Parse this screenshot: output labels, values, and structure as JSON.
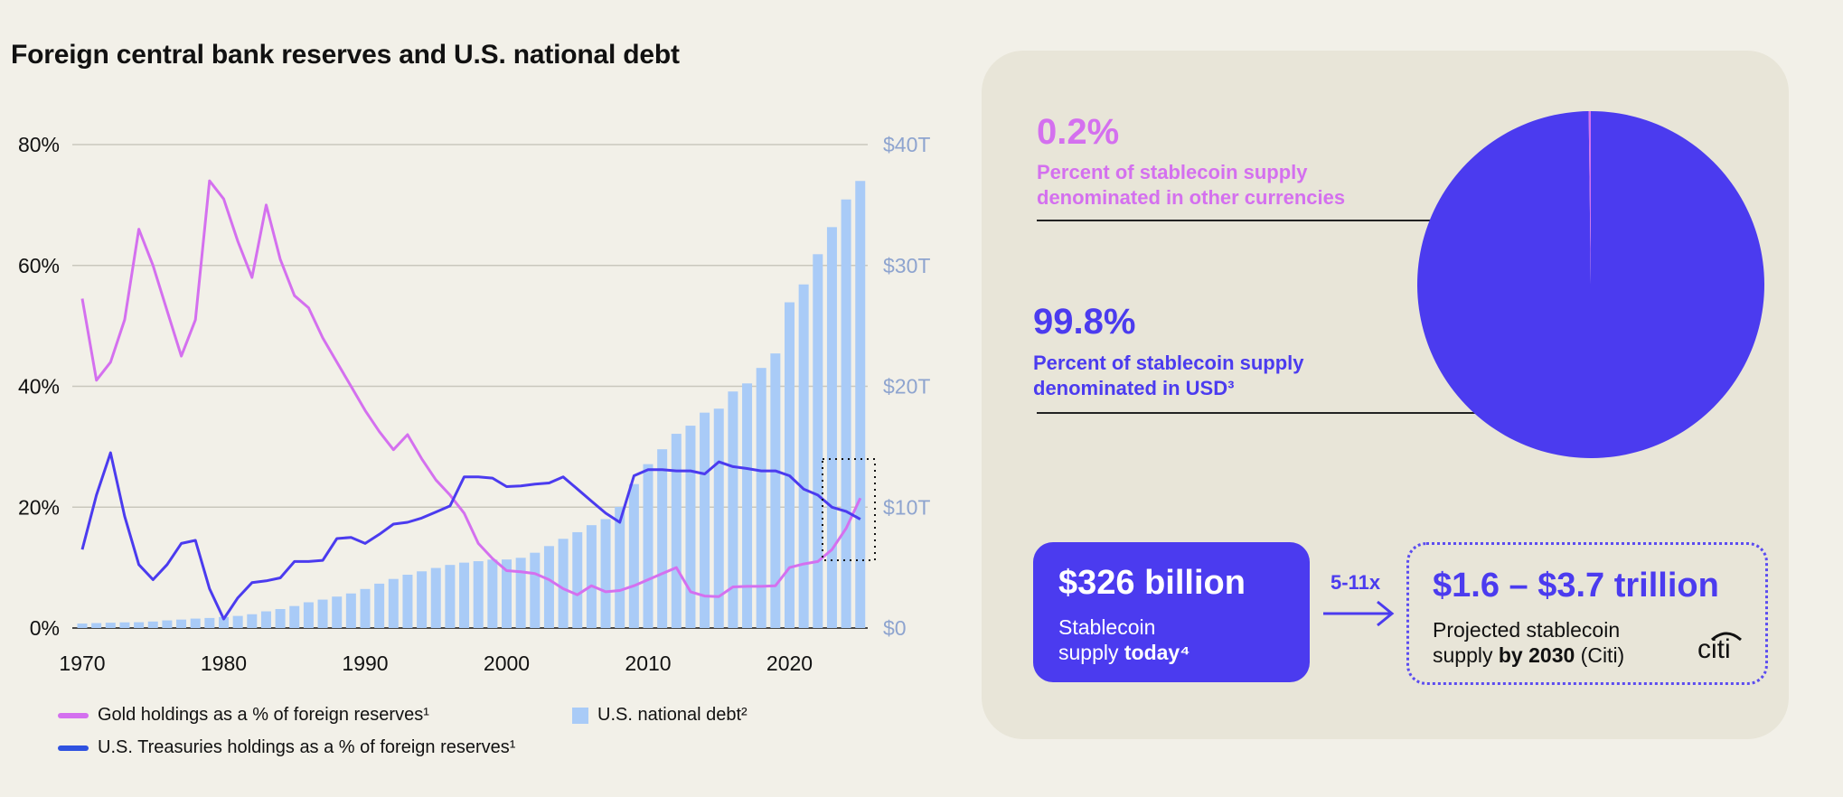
{
  "title": "Foreign central bank reserves and U.S. national debt",
  "chart_data": {
    "type": "bar",
    "x": [
      1970,
      1971,
      1972,
      1973,
      1974,
      1975,
      1976,
      1977,
      1978,
      1979,
      1980,
      1981,
      1982,
      1983,
      1984,
      1985,
      1986,
      1987,
      1988,
      1989,
      1990,
      1991,
      1992,
      1993,
      1994,
      1995,
      1996,
      1997,
      1998,
      1999,
      2000,
      2001,
      2002,
      2003,
      2004,
      2005,
      2006,
      2007,
      2008,
      2009,
      2010,
      2011,
      2012,
      2013,
      2014,
      2015,
      2016,
      2017,
      2018,
      2019,
      2020,
      2021,
      2022,
      2023,
      2024,
      2025
    ],
    "x_ticks": [
      "1970",
      "1980",
      "1990",
      "2000",
      "2010",
      "2020"
    ],
    "y_left_ticks": [
      "0%",
      "20%",
      "40%",
      "60%",
      "80%"
    ],
    "y_left_lim": [
      0,
      80
    ],
    "y_right_ticks": [
      "$0",
      "$10T",
      "$20T",
      "$30T",
      "$40T"
    ],
    "y_right_lim": [
      0,
      40
    ],
    "grid": true,
    "legend_position": "bottom-left",
    "series": [
      {
        "name": "Gold holdings as a % of foreign reserves¹",
        "kind": "line",
        "axis": "left",
        "color": "#d470ef",
        "values": [
          54.5,
          41,
          44,
          51,
          66,
          60,
          52.5,
          45,
          51,
          74,
          71,
          64,
          58,
          70,
          61,
          55,
          53,
          48,
          44,
          40,
          36,
          32.5,
          29.5,
          32,
          28,
          24.5,
          22,
          19,
          14,
          11.5,
          9.5,
          9.3,
          9,
          8,
          6.5,
          5.5,
          7,
          6,
          6.2,
          7,
          8,
          9,
          10,
          6,
          5.3,
          5.2,
          6.8,
          6.9,
          6.9,
          7,
          10,
          10.6,
          11,
          13,
          16.5,
          21.5
        ]
      },
      {
        "name": "U.S. Treasuries holdings as a % of foreign reserves¹",
        "kind": "line",
        "axis": "left",
        "color": "#4b3bef",
        "values": [
          13,
          22,
          29,
          18.5,
          10.5,
          8,
          10.5,
          14,
          14.5,
          6.5,
          1.5,
          5,
          7.5,
          7.8,
          8.3,
          11,
          11,
          11.2,
          14.8,
          15,
          14,
          15.5,
          17.2,
          17.5,
          18.2,
          19.2,
          20.2,
          25,
          25,
          24.8,
          23.4,
          23.5,
          23.8,
          24,
          25,
          23,
          21,
          19,
          17.5,
          25.2,
          26.2,
          26.2,
          26,
          26,
          25.5,
          27.5,
          26.7,
          26.4,
          26,
          26,
          25.2,
          23,
          22,
          20,
          19.3,
          18
        ]
      },
      {
        "name": "U.S. national debt²",
        "kind": "bar",
        "axis": "right",
        "color": "#a9cbf7",
        "values": [
          0.37,
          0.41,
          0.44,
          0.47,
          0.48,
          0.54,
          0.63,
          0.7,
          0.78,
          0.83,
          0.91,
          1.0,
          1.14,
          1.38,
          1.57,
          1.82,
          2.13,
          2.35,
          2.6,
          2.86,
          3.23,
          3.67,
          4.06,
          4.41,
          4.69,
          4.97,
          5.22,
          5.41,
          5.53,
          5.66,
          5.67,
          5.81,
          6.23,
          6.78,
          7.38,
          7.93,
          8.51,
          9.01,
          10.02,
          11.91,
          13.56,
          14.79,
          16.07,
          16.74,
          17.82,
          18.15,
          19.57,
          20.24,
          21.52,
          22.72,
          26.95,
          28.43,
          30.93,
          33.17,
          35.46,
          36.99
        ]
      }
    ]
  },
  "panel": {
    "other_pct": "0.2%",
    "other_label_1": "Percent of stablecoin supply",
    "other_label_2": "denominated in other currencies",
    "usd_pct": "99.8%",
    "usd_label_1": "Percent of stablecoin supply",
    "usd_label_2": "denominated in USD³",
    "pie": {
      "values": [
        99.8,
        0.2
      ],
      "colors": [
        "#4b3bef",
        "#d470ef"
      ]
    },
    "today_amount": "$326 billion",
    "today_desc_1": "Stablecoin",
    "today_desc_2a": "supply ",
    "today_desc_2b": "today⁴",
    "multiplier": "5-11x",
    "projected_amount": "$1.6 – $3.7 trillion",
    "projected_desc_1": "Projected stablecoin",
    "projected_desc_2a": "supply ",
    "projected_desc_2b": "by 2030",
    "projected_desc_2c": " (Citi)",
    "logo_text": "citi"
  }
}
